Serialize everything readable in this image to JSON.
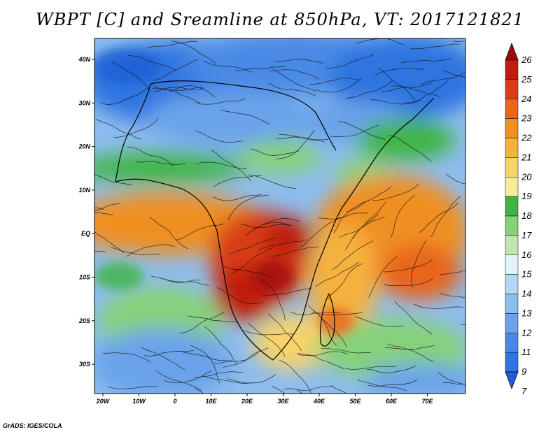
{
  "title": "WBPT [C] and Sreamline at 850hPa, VT: 2017121821",
  "credit": "GrADS: IGES/COLA",
  "map": {
    "lat_labels": [
      "40N",
      "30N",
      "20N",
      "10N",
      "EQ",
      "10S",
      "20S",
      "30S"
    ],
    "lon_labels": [
      "20W",
      "10W",
      "0",
      "10E",
      "20E",
      "30E",
      "40E",
      "50E",
      "60E",
      "70E"
    ]
  },
  "colorbar": {
    "levels": [
      "7",
      "9",
      "11",
      "12",
      "13",
      "14",
      "15",
      "16",
      "17",
      "18",
      "19",
      "20",
      "21",
      "22",
      "23",
      "24",
      "25",
      "26"
    ],
    "colors": [
      "#1e5fd6",
      "#2f74e0",
      "#4a8ae6",
      "#6aa3ea",
      "#8dbcee",
      "#b4d6f2",
      "#dff2f6",
      "#bfe8b0",
      "#86d17a",
      "#3fb544",
      "#f7ec9a",
      "#f7d36b",
      "#f4b13e",
      "#ef8f24",
      "#e8651d",
      "#d93e17",
      "#c01d0f",
      "#a00c09"
    ]
  },
  "chart_data": {
    "type": "heatmap",
    "title": "WBPT [C] and Sreamline at 850hPa, VT: 2017121821",
    "variable": "WBPT [C]",
    "level": "850hPa",
    "valid_time": "2017121821",
    "lon_range": [
      "20W",
      "80E"
    ],
    "lat_range": [
      "35S",
      "45N"
    ],
    "colorbar_levels": [
      7,
      9,
      11,
      12,
      13,
      14,
      15,
      16,
      17,
      18,
      19,
      20,
      21,
      22,
      23,
      24,
      25,
      26
    ]
  }
}
